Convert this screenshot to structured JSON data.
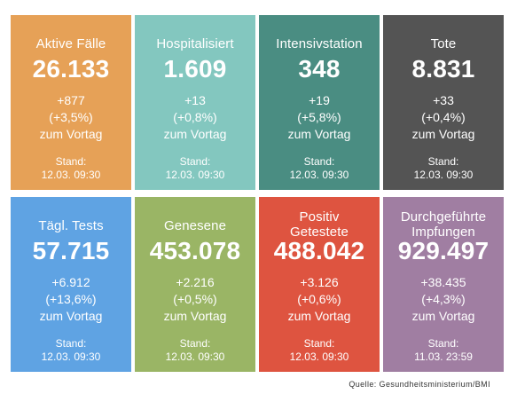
{
  "tiles": [
    {
      "title": "Aktive Fälle",
      "value": "26.133",
      "delta": "+877",
      "percent": "(+3,5%)",
      "suffix": "zum Vortag",
      "stand_label": "Stand:",
      "stand": "12.03. 09:30",
      "color": "#E6A157"
    },
    {
      "title": "Hospitalisiert",
      "value": "1.609",
      "delta": "+13",
      "percent": "(+0,8%)",
      "suffix": "zum Vortag",
      "stand_label": "Stand:",
      "stand": "12.03. 09:30",
      "color": "#83C7BF"
    },
    {
      "title": "Intensivstation",
      "value": "348",
      "delta": "+19",
      "percent": "(+5,8%)",
      "suffix": "zum Vortag",
      "stand_label": "Stand:",
      "stand": "12.03. 09:30",
      "color": "#4A8D82"
    },
    {
      "title": "Tote",
      "value": "8.831",
      "delta": "+33",
      "percent": "(+0,4%)",
      "suffix": "zum Vortag",
      "stand_label": "Stand:",
      "stand": "12.03. 09:30",
      "color": "#545454"
    },
    {
      "title": "Tägl. Tests",
      "value": "57.715",
      "delta": "+6.912",
      "percent": "(+13,6%)",
      "suffix": "zum Vortag",
      "stand_label": "Stand:",
      "stand": "12.03. 09:30",
      "color": "#5FA3E3"
    },
    {
      "title": "Genesene",
      "value": "453.078",
      "delta": "+2.216",
      "percent": "(+0,5%)",
      "suffix": "zum Vortag",
      "stand_label": "Stand:",
      "stand": "12.03. 09:30",
      "color": "#9AB565"
    },
    {
      "title": "Positiv Getestete",
      "value": "488.042",
      "delta": "+3.126",
      "percent": "(+0,6%)",
      "suffix": "zum Vortag",
      "stand_label": "Stand:",
      "stand": "12.03. 09:30",
      "color": "#DE5440"
    },
    {
      "title": "Durchgeführte Impfungen",
      "value": "929.497",
      "delta": "+38.435",
      "percent": "(+4,3%)",
      "suffix": "zum Vortag",
      "stand_label": "Stand:",
      "stand": "11.03. 23:59",
      "color": "#A07EA2"
    }
  ],
  "source": "Quelle: Gesundheitsministerium/BMI"
}
